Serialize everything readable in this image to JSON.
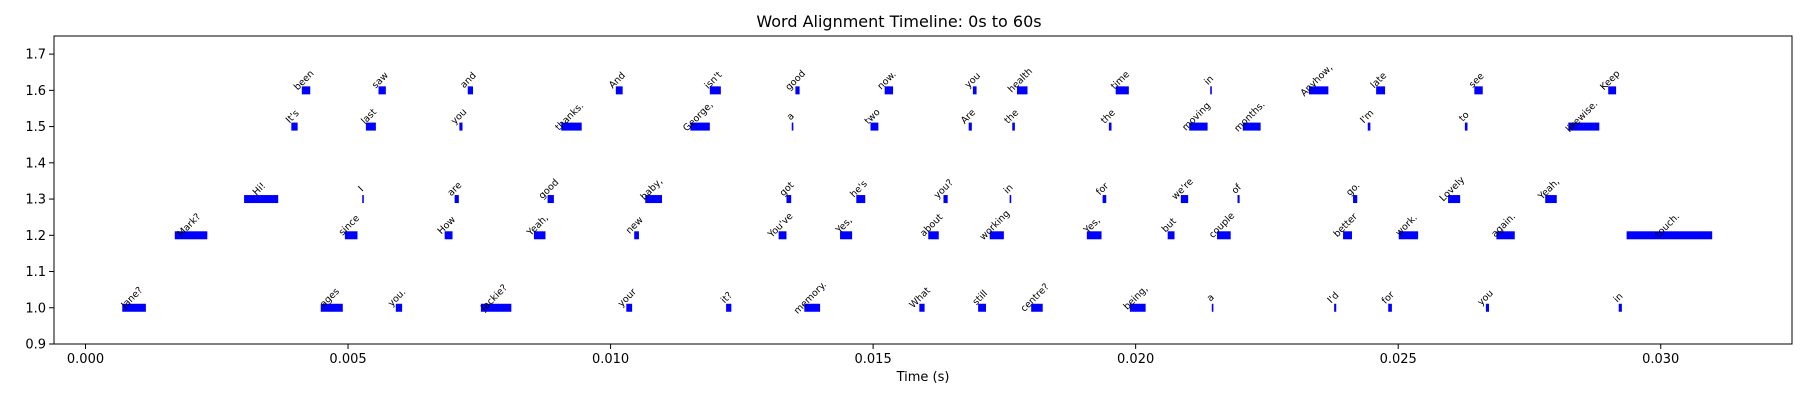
{
  "chart_data": {
    "type": "timeline",
    "title": "Word Alignment Timeline: 0s to 60s",
    "xlabel": "Time (s)",
    "ylabel": "",
    "xlim": [
      -0.0006,
      0.0325
    ],
    "ylim": [
      0.9,
      1.75
    ],
    "xticks": [
      0.0,
      0.005,
      0.01,
      0.015,
      0.02,
      0.025,
      0.03
    ],
    "xtick_labels": [
      "0.000",
      "0.005",
      "0.010",
      "0.015",
      "0.020",
      "0.025",
      "0.030"
    ],
    "yticks": [
      0.9,
      1.0,
      1.1,
      1.2,
      1.3,
      1.4,
      1.5,
      1.6,
      1.7
    ],
    "ytick_labels": [
      "0.9",
      "1.0",
      "1.1",
      "1.2",
      "1.3",
      "1.4",
      "1.5",
      "1.6",
      "1.7"
    ],
    "bar_color": "#0000ff",
    "words": [
      {
        "word": "Jane?",
        "start": 0.0007,
        "end": 0.00115,
        "level": 1.0
      },
      {
        "word": "Mark?",
        "start": 0.0017,
        "end": 0.00232,
        "level": 1.2
      },
      {
        "word": "Hi!",
        "start": 0.00302,
        "end": 0.00367,
        "level": 1.3
      },
      {
        "word": "It's",
        "start": 0.00392,
        "end": 0.00404,
        "level": 1.5
      },
      {
        "word": "been",
        "start": 0.00412,
        "end": 0.00428,
        "level": 1.6
      },
      {
        "word": "ages",
        "start": 0.00448,
        "end": 0.0049,
        "level": 1.0
      },
      {
        "word": "since",
        "start": 0.00494,
        "end": 0.00518,
        "level": 1.2
      },
      {
        "word": "I",
        "start": 0.00527,
        "end": 0.00528,
        "level": 1.3
      },
      {
        "word": "last",
        "start": 0.00534,
        "end": 0.00553,
        "level": 1.5
      },
      {
        "word": "saw",
        "start": 0.00558,
        "end": 0.00572,
        "level": 1.6
      },
      {
        "word": "you.",
        "start": 0.00591,
        "end": 0.00603,
        "level": 1.0
      },
      {
        "word": "How",
        "start": 0.00684,
        "end": 0.00699,
        "level": 1.2
      },
      {
        "word": "are",
        "start": 0.00703,
        "end": 0.00711,
        "level": 1.3
      },
      {
        "word": "you",
        "start": 0.00712,
        "end": 0.00718,
        "level": 1.5
      },
      {
        "word": "and",
        "start": 0.00728,
        "end": 0.00738,
        "level": 1.6
      },
      {
        "word": "Jackie?",
        "start": 0.00753,
        "end": 0.00811,
        "level": 1.0
      },
      {
        "word": "Yeah,",
        "start": 0.00854,
        "end": 0.00876,
        "level": 1.2
      },
      {
        "word": "good",
        "start": 0.0088,
        "end": 0.00892,
        "level": 1.3
      },
      {
        "word": "thanks.",
        "start": 0.00906,
        "end": 0.00945,
        "level": 1.5
      },
      {
        "word": "And",
        "start": 0.0101,
        "end": 0.01023,
        "level": 1.6
      },
      {
        "word": "your",
        "start": 0.0103,
        "end": 0.01041,
        "level": 1.0
      },
      {
        "word": "new",
        "start": 0.01045,
        "end": 0.01054,
        "level": 1.2
      },
      {
        "word": "baby,",
        "start": 0.01066,
        "end": 0.01098,
        "level": 1.3
      },
      {
        "word": "George,",
        "start": 0.01152,
        "end": 0.01189,
        "level": 1.5
      },
      {
        "word": "isn't",
        "start": 0.01189,
        "end": 0.0121,
        "level": 1.6
      },
      {
        "word": "it?",
        "start": 0.0122,
        "end": 0.0123,
        "level": 1.0
      },
      {
        "word": "You've",
        "start": 0.0132,
        "end": 0.01335,
        "level": 1.2
      },
      {
        "word": "got",
        "start": 0.01335,
        "end": 0.01344,
        "level": 1.3
      },
      {
        "word": "a",
        "start": 0.01345,
        "end": 0.01346,
        "level": 1.5
      },
      {
        "word": "good",
        "start": 0.01352,
        "end": 0.0136,
        "level": 1.6
      },
      {
        "word": "memory.",
        "start": 0.01369,
        "end": 0.01399,
        "level": 1.0
      },
      {
        "word": "Yes,",
        "start": 0.01437,
        "end": 0.0146,
        "level": 1.2
      },
      {
        "word": "he's",
        "start": 0.01468,
        "end": 0.01485,
        "level": 1.3
      },
      {
        "word": "two",
        "start": 0.01495,
        "end": 0.0151,
        "level": 1.5
      },
      {
        "word": "now.",
        "start": 0.01522,
        "end": 0.01538,
        "level": 1.6
      },
      {
        "word": "What",
        "start": 0.01588,
        "end": 0.01598,
        "level": 1.0
      },
      {
        "word": "about",
        "start": 0.01605,
        "end": 0.01625,
        "level": 1.2
      },
      {
        "word": "you?",
        "start": 0.01634,
        "end": 0.01642,
        "level": 1.3
      },
      {
        "word": "Are",
        "start": 0.01682,
        "end": 0.01688,
        "level": 1.5
      },
      {
        "word": "you",
        "start": 0.0169,
        "end": 0.01697,
        "level": 1.6
      },
      {
        "word": "still",
        "start": 0.017,
        "end": 0.01715,
        "level": 1.0
      },
      {
        "word": "working",
        "start": 0.01722,
        "end": 0.01749,
        "level": 1.2
      },
      {
        "word": "in",
        "start": 0.0176,
        "end": 0.01762,
        "level": 1.3
      },
      {
        "word": "the",
        "start": 0.01765,
        "end": 0.0177,
        "level": 1.5
      },
      {
        "word": "health",
        "start": 0.01774,
        "end": 0.01794,
        "level": 1.6
      },
      {
        "word": "centre?",
        "start": 0.01801,
        "end": 0.01823,
        "level": 1.0
      },
      {
        "word": "Yes,",
        "start": 0.01907,
        "end": 0.01935,
        "level": 1.2
      },
      {
        "word": "for",
        "start": 0.01937,
        "end": 0.01944,
        "level": 1.3
      },
      {
        "word": "the",
        "start": 0.01949,
        "end": 0.01954,
        "level": 1.5
      },
      {
        "word": "time",
        "start": 0.01962,
        "end": 0.01987,
        "level": 1.6
      },
      {
        "word": "being,",
        "start": 0.01989,
        "end": 0.02019,
        "level": 1.0
      },
      {
        "word": "but",
        "start": 0.02061,
        "end": 0.02074,
        "level": 1.2
      },
      {
        "word": "we're",
        "start": 0.02086,
        "end": 0.021,
        "level": 1.3
      },
      {
        "word": "moving",
        "start": 0.02102,
        "end": 0.02137,
        "level": 1.5
      },
      {
        "word": "in",
        "start": 0.02142,
        "end": 0.02144,
        "level": 1.6
      },
      {
        "word": "a",
        "start": 0.02145,
        "end": 0.02146,
        "level": 1.0
      },
      {
        "word": "couple",
        "start": 0.02155,
        "end": 0.02181,
        "level": 1.2
      },
      {
        "word": "of",
        "start": 0.02194,
        "end": 0.02198,
        "level": 1.3
      },
      {
        "word": "months.",
        "start": 0.02204,
        "end": 0.02238,
        "level": 1.5
      },
      {
        "word": "Anyhow,",
        "start": 0.0233,
        "end": 0.02367,
        "level": 1.6
      },
      {
        "word": "I'd",
        "start": 0.02378,
        "end": 0.02382,
        "level": 1.0
      },
      {
        "word": "better",
        "start": 0.02395,
        "end": 0.02412,
        "level": 1.2
      },
      {
        "word": "go.",
        "start": 0.02414,
        "end": 0.02422,
        "level": 1.3
      },
      {
        "word": "I'm",
        "start": 0.02442,
        "end": 0.02447,
        "level": 1.5
      },
      {
        "word": "late",
        "start": 0.02458,
        "end": 0.02475,
        "level": 1.6
      },
      {
        "word": "for",
        "start": 0.02481,
        "end": 0.02488,
        "level": 1.0
      },
      {
        "word": "work.",
        "start": 0.02501,
        "end": 0.02538,
        "level": 1.2
      },
      {
        "word": "Lovely",
        "start": 0.02595,
        "end": 0.02618,
        "level": 1.3
      },
      {
        "word": "to",
        "start": 0.02627,
        "end": 0.02632,
        "level": 1.5
      },
      {
        "word": "see",
        "start": 0.02645,
        "end": 0.02661,
        "level": 1.6
      },
      {
        "word": "you",
        "start": 0.02667,
        "end": 0.02673,
        "level": 1.0
      },
      {
        "word": "again.",
        "start": 0.02687,
        "end": 0.02722,
        "level": 1.2
      },
      {
        "word": "Yeah,",
        "start": 0.0278,
        "end": 0.02802,
        "level": 1.3
      },
      {
        "word": "likewise.",
        "start": 0.02824,
        "end": 0.02883,
        "level": 1.5
      },
      {
        "word": "Keep",
        "start": 0.029,
        "end": 0.02915,
        "level": 1.6
      },
      {
        "word": "in",
        "start": 0.0292,
        "end": 0.02926,
        "level": 1.0
      },
      {
        "word": "touch.",
        "start": 0.02935,
        "end": 0.03098,
        "level": 1.2
      }
    ]
  }
}
